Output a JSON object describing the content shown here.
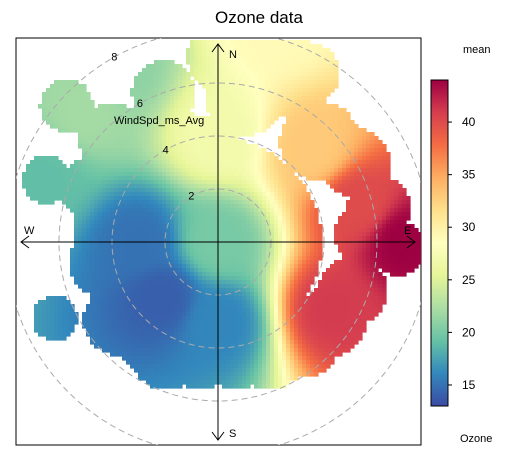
{
  "chart_data": {
    "type": "heatmap",
    "subtype": "polar-plot",
    "title": "Ozone data",
    "radial_variable_label": "WindSpd_ms_Avg",
    "radial_ticks": [
      2,
      4,
      6,
      8
    ],
    "compass": [
      "N",
      "E",
      "S",
      "W"
    ],
    "colorbar": {
      "title": "mean",
      "bottom_label": "Ozone",
      "range": [
        13,
        44
      ],
      "ticks": [
        15,
        20,
        25,
        30,
        35,
        40
      ],
      "palette": [
        "#3b4ba3",
        "#3288bd",
        "#66c2a5",
        "#abdda4",
        "#e6f598",
        "#ffffbf",
        "#fee08b",
        "#fdae61",
        "#f46d43",
        "#d53e4f",
        "#9e0142"
      ]
    },
    "surface": {
      "description": "mean ozone concentration by wind direction and wind speed",
      "anchor_points": [
        {
          "direction_deg": 0,
          "wind_speed": 0,
          "ozone": 20
        },
        {
          "direction_deg": 0,
          "wind_speed": 4,
          "ozone": 27
        },
        {
          "direction_deg": 15,
          "wind_speed": 8.5,
          "ozone": 29
        },
        {
          "direction_deg": 45,
          "wind_speed": 5,
          "ozone": 33
        },
        {
          "direction_deg": 75,
          "wind_speed": 5.5,
          "ozone": 40
        },
        {
          "direction_deg": 90,
          "wind_speed": 7,
          "ozone": 44
        },
        {
          "direction_deg": 120,
          "wind_speed": 5,
          "ozone": 41
        },
        {
          "direction_deg": 180,
          "wind_speed": 3,
          "ozone": 16
        },
        {
          "direction_deg": 225,
          "wind_speed": 3,
          "ozone": 14
        },
        {
          "direction_deg": 270,
          "wind_speed": 3,
          "ozone": 15
        },
        {
          "direction_deg": 290,
          "wind_speed": 7,
          "ozone": 19
        },
        {
          "direction_deg": 315,
          "wind_speed": 7,
          "ozone": 22
        },
        {
          "direction_deg": 330,
          "wind_speed": 7.5,
          "ozone": 21
        }
      ]
    }
  }
}
